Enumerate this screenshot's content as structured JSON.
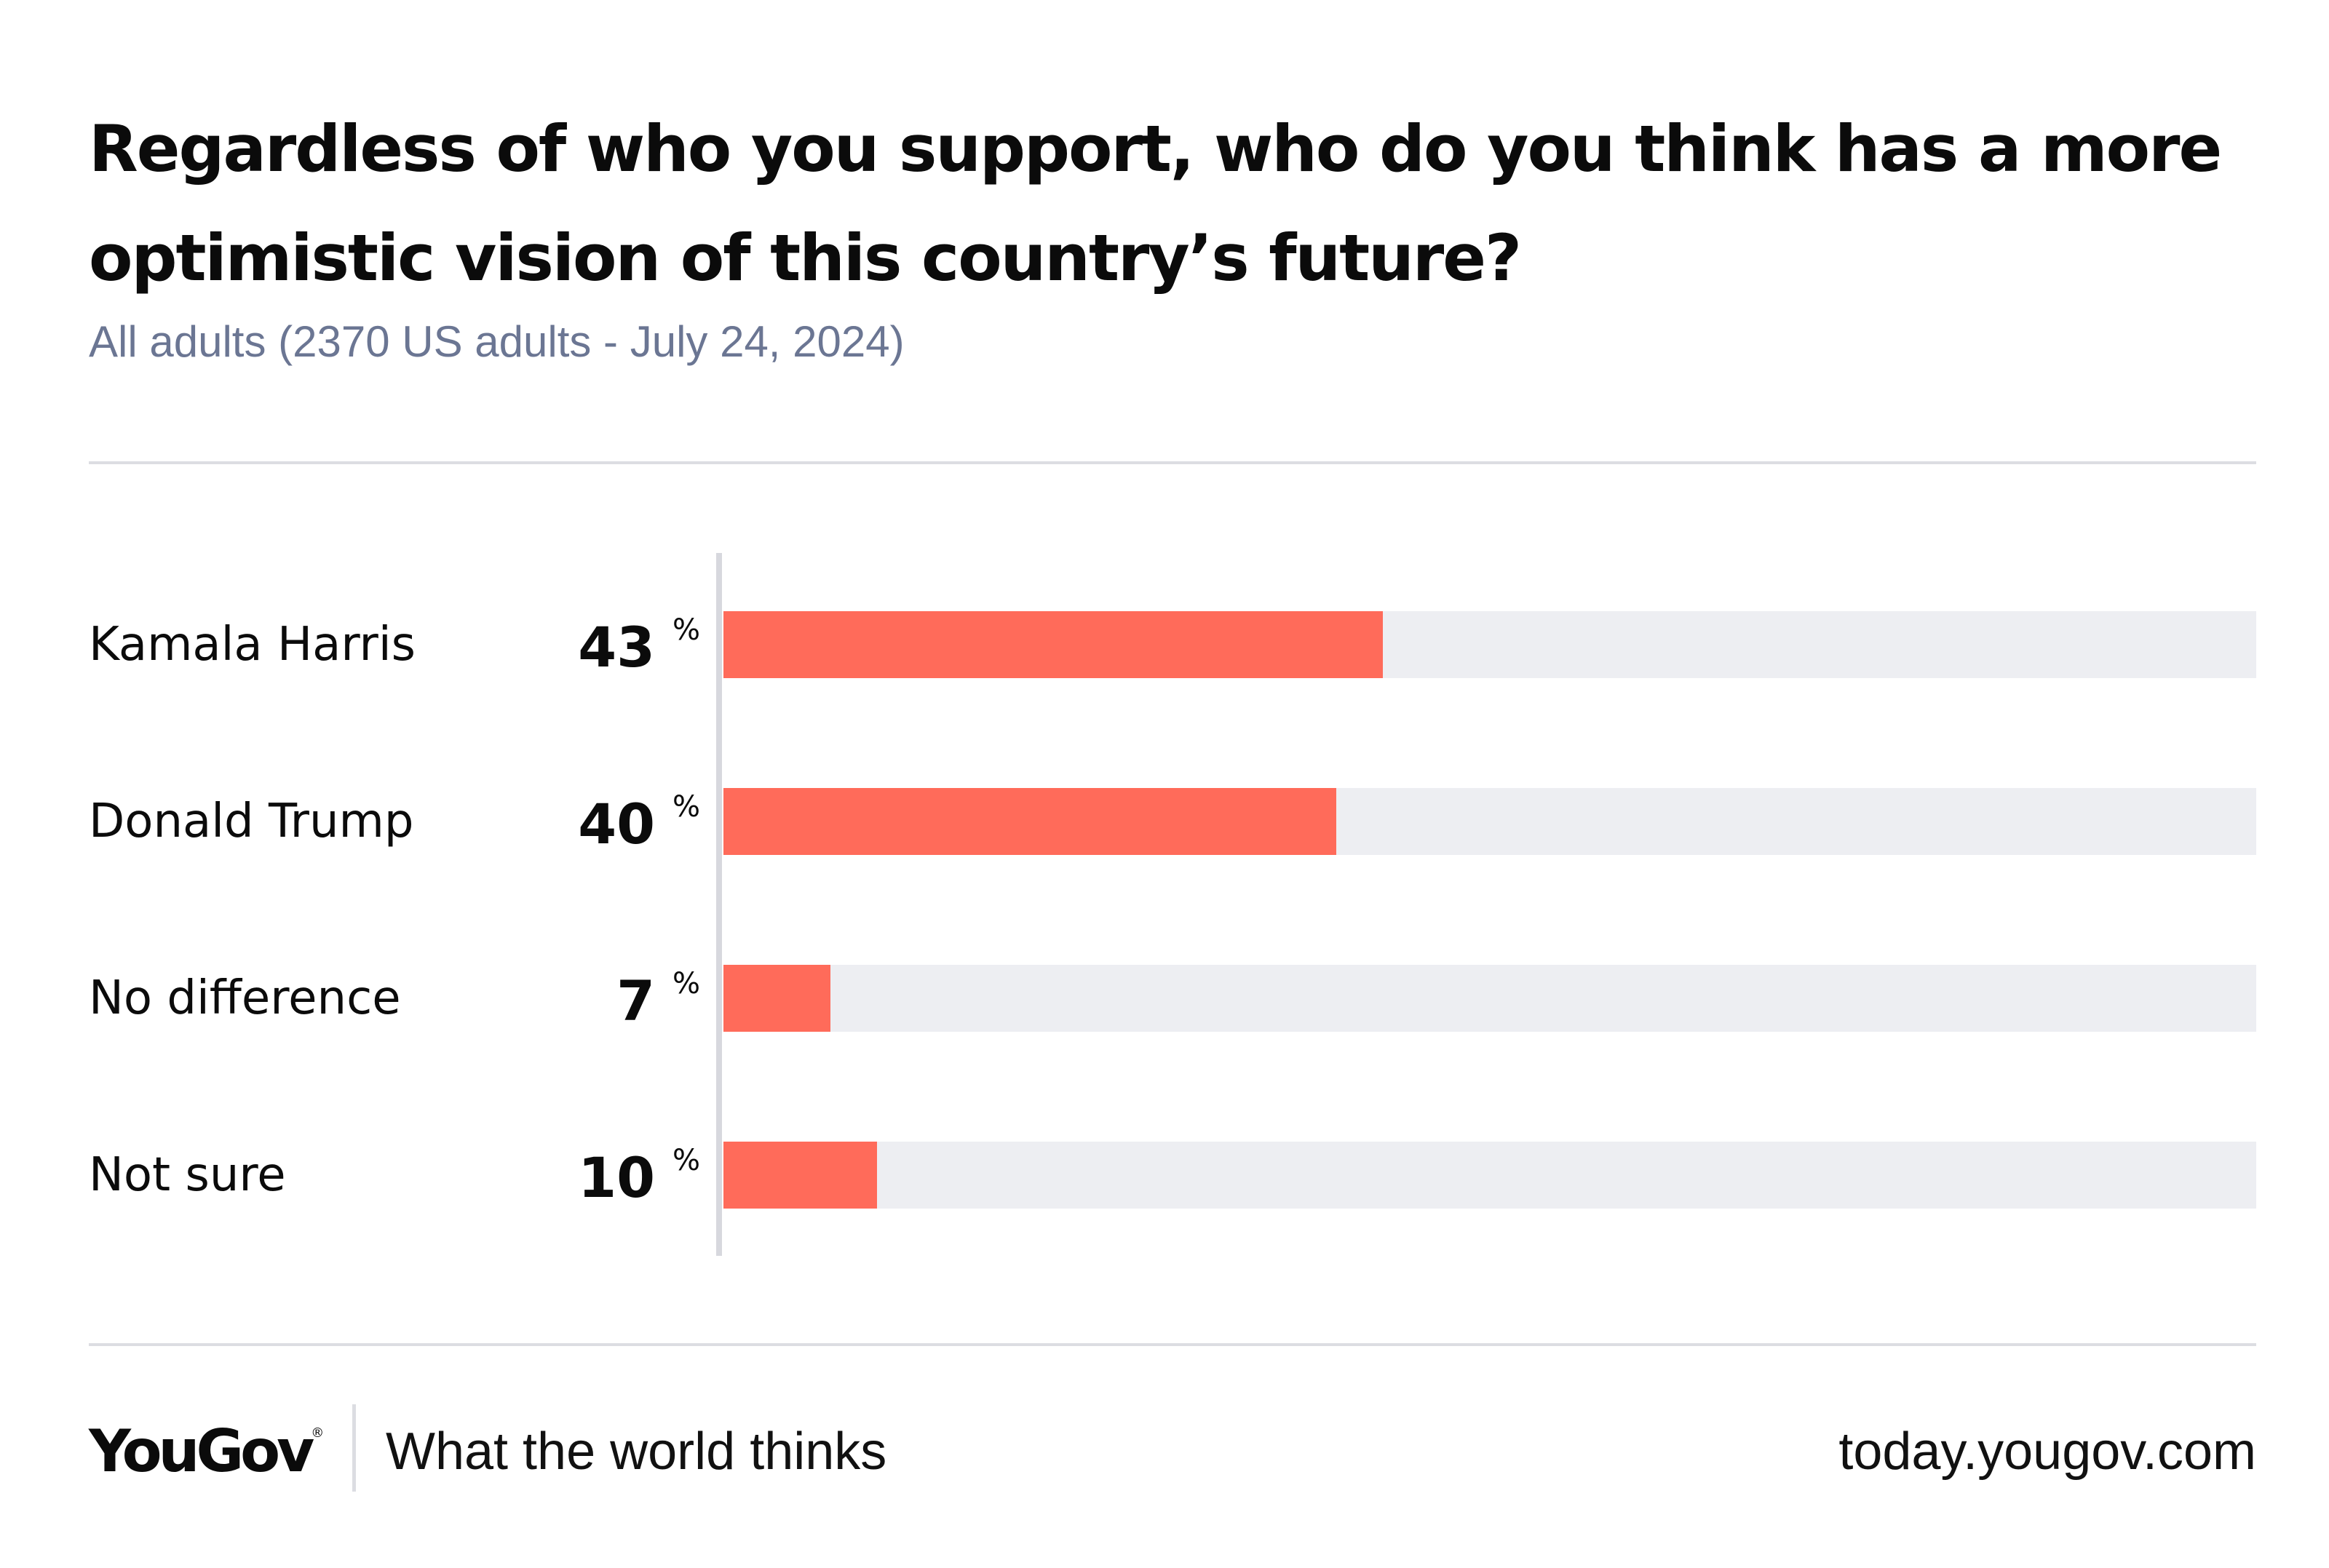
{
  "header": {
    "title": "Regardless of who you support, who do you think has a more optimistic vision of this country’s future?",
    "subtitle": "All adults (2370 US adults - July 24, 2024)"
  },
  "chart_data": {
    "type": "bar",
    "orientation": "horizontal",
    "title": "Regardless of who you support, who do you think has a more optimistic vision of this country’s future?",
    "subtitle": "All adults (2370 US adults - July 24, 2024)",
    "categories": [
      "Kamala Harris",
      "Donald Trump",
      "No difference",
      "Not sure"
    ],
    "values": [
      43,
      40,
      7,
      10
    ],
    "unit": "%",
    "xlim": [
      0,
      100
    ],
    "colors": {
      "bar": "#ff6b5a",
      "track": "#edeef2"
    },
    "rows": [
      {
        "label": "Kamala Harris",
        "value": 43,
        "value_text": "43"
      },
      {
        "label": "Donald Trump",
        "value": 40,
        "value_text": "40"
      },
      {
        "label": "No difference",
        "value": 7,
        "value_text": "7"
      },
      {
        "label": "Not sure",
        "value": 10,
        "value_text": "10"
      }
    ]
  },
  "footer": {
    "logo": "YouGov",
    "logo_mark": "®",
    "tagline": "What the world thinks",
    "url": "today.yougov.com"
  }
}
